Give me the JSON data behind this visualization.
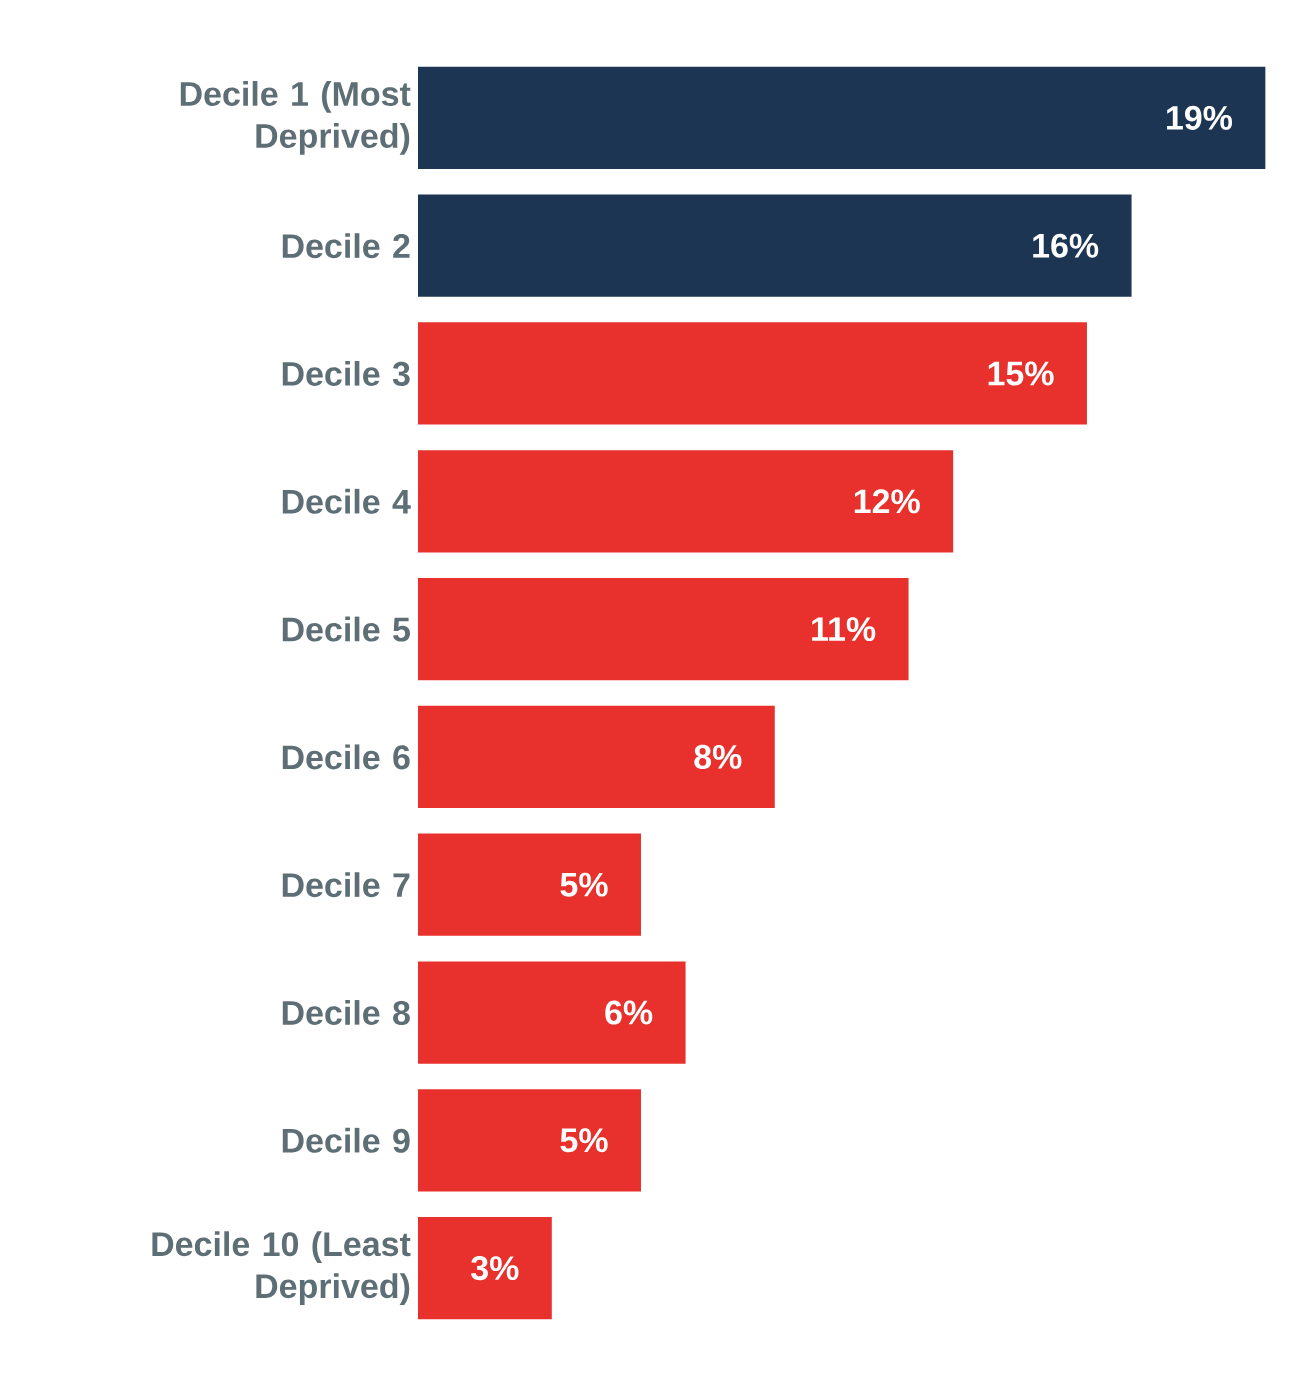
{
  "chart_data": {
    "type": "bar",
    "orientation": "horizontal",
    "categories": [
      "Decile 1 (Most Deprived)",
      "Decile 2",
      "Decile 3",
      "Decile 4",
      "Decile 5",
      "Decile 6",
      "Decile 7",
      "Decile 8",
      "Decile 9",
      "Decile 10 (Least Deprived)"
    ],
    "values": [
      19,
      16,
      15,
      12,
      11,
      8,
      5,
      6,
      5,
      3
    ],
    "colors": [
      "#1c3553",
      "#1c3553",
      "#e8312c",
      "#e8312c",
      "#e8312c",
      "#e8312c",
      "#e8312c",
      "#e8312c",
      "#e8312c",
      "#e8312c"
    ],
    "value_labels": [
      "19%",
      "16%",
      "15%",
      "12%",
      "11%",
      "8%",
      "5%",
      "6%",
      "5%",
      "3%"
    ]
  }
}
